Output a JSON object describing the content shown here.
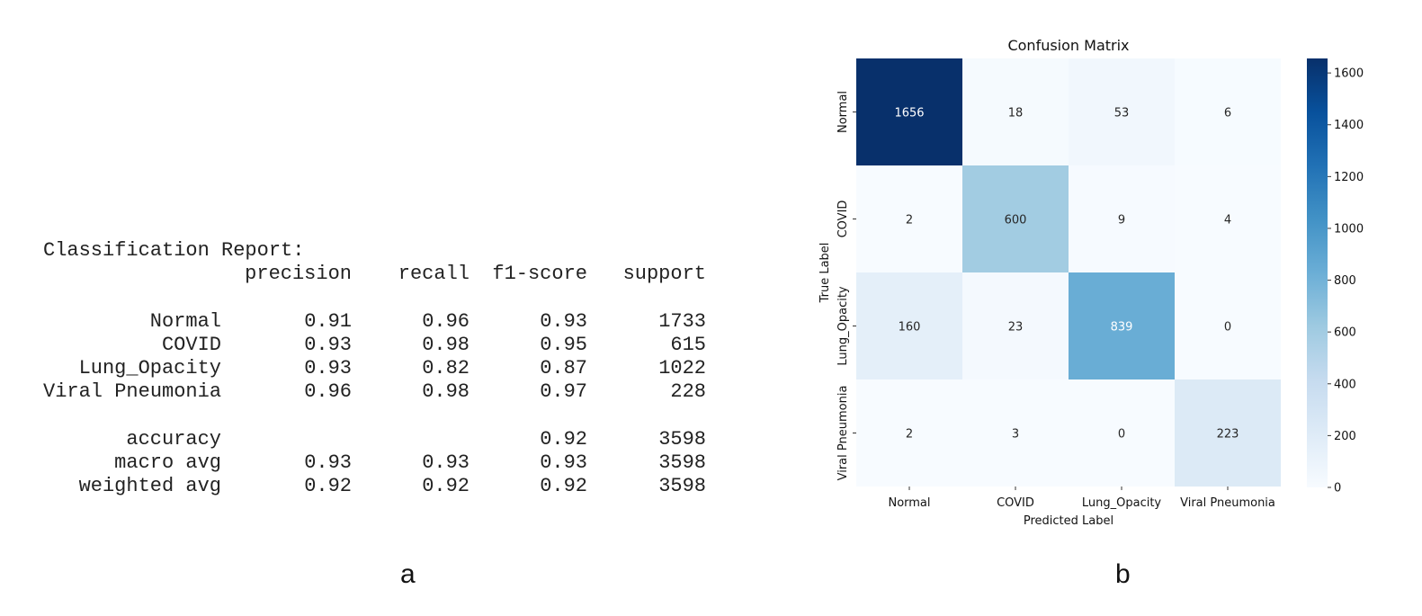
{
  "panel_a": {
    "letter": "a",
    "title": "Classification Report:",
    "headers": [
      "precision",
      "recall",
      "f1-score",
      "support"
    ],
    "rows": [
      {
        "label": "Normal",
        "precision": "0.91",
        "recall": "0.96",
        "f1": "0.93",
        "support": "1733"
      },
      {
        "label": "COVID",
        "precision": "0.93",
        "recall": "0.98",
        "f1": "0.95",
        "support": "615"
      },
      {
        "label": "Lung_Opacity",
        "precision": "0.93",
        "recall": "0.82",
        "f1": "0.87",
        "support": "1022"
      },
      {
        "label": "Viral Pneumonia",
        "precision": "0.96",
        "recall": "0.98",
        "f1": "0.97",
        "support": "228"
      }
    ],
    "summary": [
      {
        "label": "accuracy",
        "precision": "",
        "recall": "",
        "f1": "0.92",
        "support": "3598"
      },
      {
        "label": "macro avg",
        "precision": "0.93",
        "recall": "0.93",
        "f1": "0.93",
        "support": "3598"
      },
      {
        "label": "weighted avg",
        "precision": "0.92",
        "recall": "0.92",
        "f1": "0.92",
        "support": "3598"
      }
    ]
  },
  "panel_b": {
    "letter": "b"
  },
  "chart_data": {
    "type": "heatmap",
    "title": "Confusion Matrix",
    "xlabel": "Predicted Label",
    "ylabel": "True Label",
    "x_categories": [
      "Normal",
      "COVID",
      "Lung_Opacity",
      "Viral Pneumonia"
    ],
    "y_categories": [
      "Normal",
      "COVID",
      "Lung_Opacity",
      "Viral Pneumonia"
    ],
    "values": [
      [
        1656,
        18,
        53,
        6
      ],
      [
        2,
        600,
        9,
        4
      ],
      [
        160,
        23,
        839,
        0
      ],
      [
        2,
        3,
        0,
        223
      ]
    ],
    "colormap": "Blues",
    "colorbar": {
      "min": 0,
      "max": 1656,
      "ticks": [
        0,
        200,
        400,
        600,
        800,
        1000,
        1200,
        1400,
        1600
      ]
    },
    "colors": {
      "low": "#f7fbff",
      "high": "#08306b"
    }
  }
}
